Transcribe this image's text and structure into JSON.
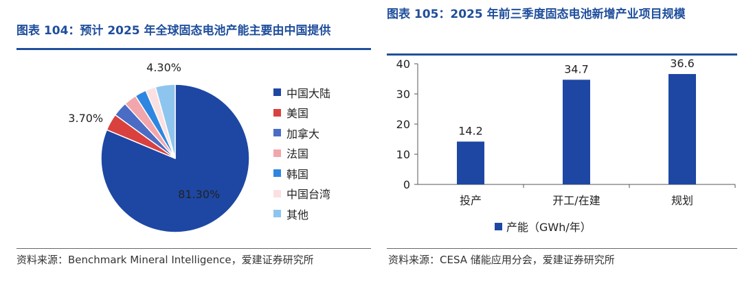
{
  "left": {
    "title": "图表 104：预计 2025 年全球固态电池产能主要由中国提供",
    "source": "资料来源：Benchmark Mineral Intelligence，爱建证券研究所"
  },
  "right": {
    "title": "图表 105：2025 年前三季度固态电池新增产业项目规模",
    "source": "资料来源：CESA 储能应用分会，爱建证券研究所"
  },
  "chart_data": [
    {
      "type": "pie",
      "labels": [
        "中国大陆",
        "美国",
        "加拿大",
        "法国",
        "韩国",
        "中国台湾",
        "其他"
      ],
      "values": [
        81.3,
        3.7,
        3.2,
        2.8,
        2.5,
        2.2,
        4.3
      ],
      "colors": [
        "#1d47a3",
        "#d9413f",
        "#4a6cc4",
        "#f2a6ab",
        "#2e86e0",
        "#fbe0e2",
        "#8ec5ef"
      ],
      "data_labels": {
        "0": "81.30%",
        "1": "3.70%",
        "6": "4.30%"
      },
      "legend_position": "right"
    },
    {
      "type": "bar",
      "categories": [
        "投产",
        "开工/在建",
        "规划"
      ],
      "series": [
        {
          "name": "产能（GWh/年）",
          "values": [
            14.2,
            34.7,
            36.6
          ],
          "color": "#1d47a3"
        }
      ],
      "value_labels": [
        "14.2",
        "34.7",
        "36.6"
      ],
      "ylim": [
        0,
        40
      ],
      "yticks": [
        0,
        10,
        20,
        30,
        40
      ],
      "ytick_labels": [
        "0",
        "10",
        "20",
        "30",
        "40"
      ],
      "legend_position": "bottom"
    }
  ]
}
